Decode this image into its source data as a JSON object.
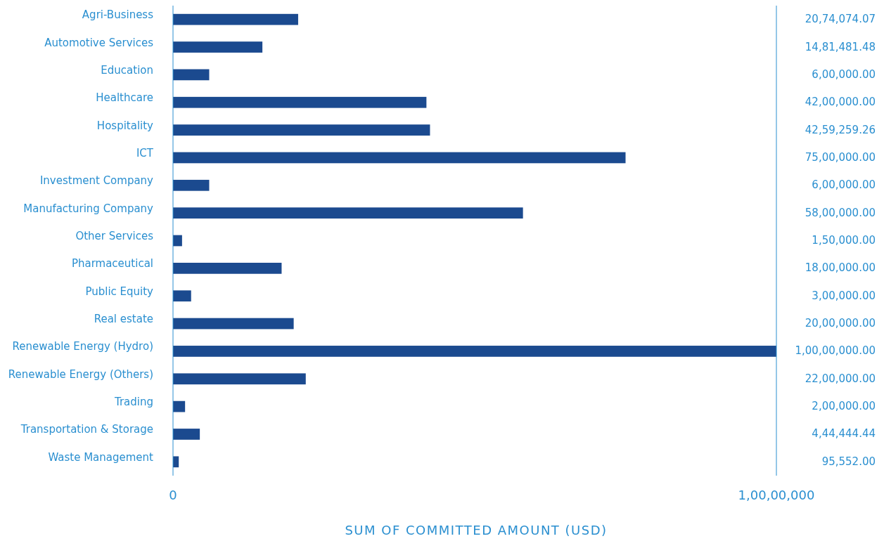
{
  "chart_data": {
    "type": "bar",
    "orientation": "horizontal",
    "xlabel": "SUM OF COMMITTED AMOUNT (USD)",
    "categories": [
      "Agri-Business",
      "Automotive Services",
      "Education",
      "Healthcare",
      "Hospitality",
      "ICT",
      "Investment Company",
      "Manufacturing Company",
      "Other Services",
      "Pharmaceutical",
      "Public Equity",
      "Real estate",
      "Renewable Energy (Hydro)",
      "Renewable Energy (Others)",
      "Trading",
      "Transportation & Storage",
      "Waste Management"
    ],
    "values": [
      2074074.07,
      1481481.48,
      600000,
      4200000,
      4259259.26,
      7500000,
      600000,
      5800000,
      150000,
      1800000,
      300000,
      2000000,
      10000000,
      2200000,
      200000,
      444444.44,
      95552
    ],
    "value_labels": [
      "20,74,074.07",
      "14,81,481.48",
      "6,00,000.00",
      "42,00,000.00",
      "42,59,259.26",
      "75,00,000.00",
      "6,00,000.00",
      "58,00,000.00",
      "1,50,000.00",
      "18,00,000.00",
      "3,00,000.00",
      "20,00,000.00",
      "1,00,00,000.00",
      "22,00,000.00",
      "2,00,000.00",
      "4,44,444.44",
      "95,552.00"
    ],
    "color": "#1b4a8f",
    "xlim": [
      0,
      10000000
    ],
    "xticks": [
      0,
      {
        "value": 10000000,
        "label": "1,00,00,000"
      }
    ]
  }
}
